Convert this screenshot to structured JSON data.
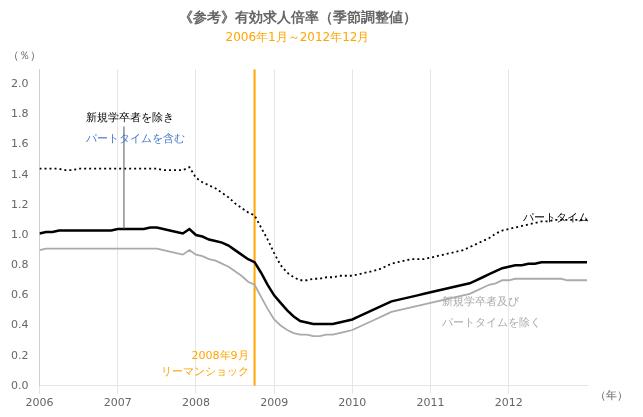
{
  "chart_data": {
    "type": "line",
    "title": "《参考》有効求人倍率（季節調整値）",
    "subtitle": {
      "text": "2006年1月～2012年12月",
      "color": "#FFA500"
    },
    "ylabel": "（％）",
    "xlabel": "（年）",
    "xlim": [
      2006.0,
      2013.0
    ],
    "xticks": [
      2006,
      2007,
      2008,
      2009,
      2010,
      2011,
      2012
    ],
    "ylim": [
      0.0,
      2.1
    ],
    "yticks": [
      {
        "value": 0.0,
        "label": "0.0"
      },
      0.2,
      0.4,
      0.6,
      0.8,
      {
        "value": 1.0,
        "label": "1.0"
      },
      1.2,
      1.4,
      1.6,
      1.8,
      {
        "value": 2.0,
        "label": "2.0"
      }
    ],
    "grid": "x",
    "x": [
      2006.0,
      2006.083,
      2006.167,
      2006.25,
      2006.333,
      2006.417,
      2006.5,
      2006.583,
      2006.667,
      2006.75,
      2006.833,
      2006.917,
      2007.0,
      2007.083,
      2007.167,
      2007.25,
      2007.333,
      2007.417,
      2007.5,
      2007.583,
      2007.667,
      2007.75,
      2007.833,
      2007.917,
      2008.0,
      2008.083,
      2008.167,
      2008.25,
      2008.333,
      2008.417,
      2008.5,
      2008.583,
      2008.667,
      2008.75,
      2008.833,
      2008.917,
      2009.0,
      2009.083,
      2009.167,
      2009.25,
      2009.333,
      2009.417,
      2009.5,
      2009.583,
      2009.667,
      2009.75,
      2009.833,
      2009.917,
      2010.0,
      2010.083,
      2010.167,
      2010.25,
      2010.333,
      2010.417,
      2010.5,
      2010.583,
      2010.667,
      2010.75,
      2010.833,
      2010.917,
      2011.0,
      2011.083,
      2011.167,
      2011.25,
      2011.333,
      2011.417,
      2011.5,
      2011.583,
      2011.667,
      2011.75,
      2011.833,
      2011.917,
      2012.0,
      2012.083,
      2012.167,
      2012.25,
      2012.333,
      2012.417,
      2012.5,
      2012.583,
      2012.667,
      2012.75,
      2012.833,
      2012.917,
      2013.0
    ],
    "series": [
      {
        "color": "#000000",
        "line_style": "dotted",
        "values": [
          1.44,
          1.44,
          1.44,
          1.44,
          1.43,
          1.43,
          1.44,
          1.44,
          1.44,
          1.44,
          1.44,
          1.44,
          1.44,
          1.44,
          1.44,
          1.44,
          1.44,
          1.44,
          1.44,
          1.43,
          1.43,
          1.43,
          1.43,
          1.45,
          1.38,
          1.35,
          1.33,
          1.31,
          1.28,
          1.25,
          1.21,
          1.18,
          1.15,
          1.13,
          1.05,
          0.97,
          0.88,
          0.8,
          0.75,
          0.72,
          0.7,
          0.7,
          0.71,
          0.71,
          0.72,
          0.72,
          0.73,
          0.73,
          0.73,
          0.74,
          0.75,
          0.76,
          0.77,
          0.79,
          0.81,
          0.82,
          0.83,
          0.84,
          0.84,
          0.84,
          0.85,
          0.86,
          0.87,
          0.88,
          0.89,
          0.9,
          0.92,
          0.94,
          0.96,
          0.98,
          1.01,
          1.03,
          1.04,
          1.05,
          1.06,
          1.07,
          1.08,
          1.09,
          1.09,
          1.1,
          1.1,
          1.1,
          1.1,
          1.1,
          1.1
        ]
      },
      {
        "color": "#000000",
        "line_style": "solid",
        "values": [
          1.01,
          1.02,
          1.02,
          1.03,
          1.03,
          1.03,
          1.03,
          1.03,
          1.03,
          1.03,
          1.03,
          1.03,
          1.04,
          1.04,
          1.04,
          1.04,
          1.04,
          1.05,
          1.05,
          1.04,
          1.03,
          1.02,
          1.01,
          1.04,
          1.0,
          0.99,
          0.97,
          0.96,
          0.95,
          0.93,
          0.9,
          0.87,
          0.84,
          0.82,
          0.75,
          0.67,
          0.6,
          0.55,
          0.5,
          0.46,
          0.43,
          0.42,
          0.41,
          0.41,
          0.41,
          0.41,
          0.42,
          0.43,
          0.44,
          0.46,
          0.48,
          0.5,
          0.52,
          0.54,
          0.56,
          0.57,
          0.58,
          0.59,
          0.6,
          0.61,
          0.62,
          0.63,
          0.64,
          0.65,
          0.66,
          0.67,
          0.68,
          0.7,
          0.72,
          0.74,
          0.76,
          0.78,
          0.79,
          0.8,
          0.8,
          0.81,
          0.81,
          0.82,
          0.82,
          0.82,
          0.82,
          0.82,
          0.82,
          0.82,
          0.82
        ]
      },
      {
        "color": "#aaaaaa",
        "line_style": "solid",
        "values": [
          0.9,
          0.91,
          0.91,
          0.91,
          0.91,
          0.91,
          0.91,
          0.91,
          0.91,
          0.91,
          0.91,
          0.91,
          0.91,
          0.91,
          0.91,
          0.91,
          0.91,
          0.91,
          0.91,
          0.9,
          0.89,
          0.88,
          0.87,
          0.9,
          0.87,
          0.86,
          0.84,
          0.83,
          0.81,
          0.79,
          0.76,
          0.73,
          0.69,
          0.67,
          0.59,
          0.51,
          0.44,
          0.4,
          0.37,
          0.35,
          0.34,
          0.34,
          0.33,
          0.33,
          0.34,
          0.34,
          0.35,
          0.36,
          0.37,
          0.39,
          0.41,
          0.43,
          0.45,
          0.47,
          0.49,
          0.5,
          0.51,
          0.52,
          0.53,
          0.54,
          0.55,
          0.56,
          0.57,
          0.58,
          0.59,
          0.6,
          0.61,
          0.63,
          0.65,
          0.67,
          0.68,
          0.7,
          0.7,
          0.71,
          0.71,
          0.71,
          0.71,
          0.71,
          0.71,
          0.71,
          0.71,
          0.7,
          0.7,
          0.7,
          0.7
        ]
      }
    ],
    "vlines": [
      {
        "x": 2008.75,
        "color": "#FFA500",
        "label": [
          "2008年9月",
          "リーマンショック"
        ]
      }
    ],
    "segments": [
      {
        "x": 2007.08,
        "bottom": 1.04,
        "top": 1.72,
        "color": "#555555"
      }
    ],
    "annotations": [
      {
        "text": "新規学卒者を除き",
        "x": 2006.6,
        "y": 1.775,
        "color": "#000000"
      },
      {
        "text": "パートタイムを含む",
        "x": 2006.6,
        "y": 1.635,
        "color": "#4477cc"
      },
      {
        "text": "パートタイム",
        "x": 2012.18,
        "y": 1.115,
        "color": "#000000"
      },
      {
        "text": "新規学卒者及び",
        "x": 2011.15,
        "y": 0.555,
        "color": "#aaaaaa"
      },
      {
        "text": "パートタイムを除く",
        "x": 2011.15,
        "y": 0.415,
        "color": "#aaaaaa"
      }
    ]
  }
}
